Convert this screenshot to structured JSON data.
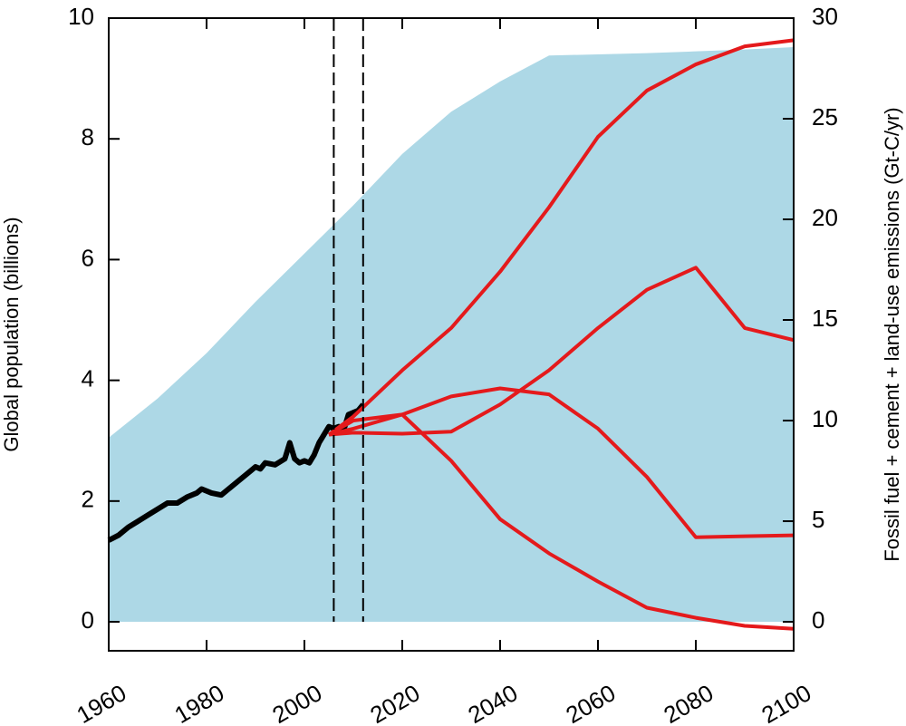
{
  "chart_data": {
    "type": "line",
    "ylabel": "Global population (billions)",
    "y2label": "Fossil fuel + cement + land-use emissions (Gt-C/yr)",
    "xlim": [
      1960,
      2100
    ],
    "xticks": [
      1960,
      1980,
      2000,
      2020,
      2040,
      2060,
      2080,
      2100
    ],
    "ylim": [
      -0.48,
      10
    ],
    "yticks": [
      0,
      2,
      4,
      6,
      8,
      10
    ],
    "y2lim": [
      -1.44,
      30
    ],
    "y2ticks": [
      0,
      5,
      10,
      15,
      20,
      25,
      30
    ],
    "vlines": [
      2006,
      2012
    ],
    "series": [
      {
        "type": "area",
        "color": "#add8e6",
        "x": [
          1960,
          1970,
          1980,
          1990,
          2000,
          2010,
          2020,
          2030,
          2040,
          2050,
          2060,
          2070,
          2080,
          2090,
          2100
        ],
        "values": [
          3.05,
          3.7,
          4.45,
          5.3,
          6.1,
          6.9,
          7.75,
          8.45,
          8.95,
          9.38,
          9.4,
          9.42,
          9.45,
          9.48,
          9.52
        ]
      },
      {
        "color": "#000000",
        "axis": "y2",
        "x": [
          1960,
          1962,
          1964,
          1966,
          1968,
          1970,
          1972,
          1974,
          1976,
          1978,
          1979,
          1981,
          1983,
          1985,
          1987,
          1989,
          1990,
          1991,
          1992,
          1994,
          1996,
          1997,
          1998,
          1999,
          2000,
          2001,
          2002,
          2003,
          2004,
          2005,
          2006,
          2007,
          2008,
          2009,
          2010,
          2011,
          2012
        ],
        "values": [
          4.05,
          4.3,
          4.7,
          5.0,
          5.3,
          5.6,
          5.9,
          5.9,
          6.2,
          6.4,
          6.6,
          6.4,
          6.3,
          6.7,
          7.1,
          7.5,
          7.7,
          7.6,
          7.9,
          7.8,
          8.1,
          8.9,
          8.1,
          7.9,
          8.0,
          7.9,
          8.3,
          8.9,
          9.3,
          9.7,
          9.6,
          9.7,
          9.5,
          10.3,
          10.4,
          10.5,
          10.8
        ]
      },
      {
        "color": "#e41a1c",
        "axis": "y2",
        "x": [
          2005,
          2010,
          2020,
          2030,
          2040,
          2050,
          2060,
          2070,
          2080,
          2090,
          2100
        ],
        "values": [
          9.3,
          10.2,
          12.5,
          14.6,
          17.4,
          20.6,
          24.1,
          26.4,
          27.7,
          28.6,
          28.9
        ]
      },
      {
        "color": "#e41a1c",
        "axis": "y2",
        "x": [
          2005,
          2010,
          2020,
          2030,
          2040,
          2050,
          2060,
          2070,
          2080,
          2090,
          2100
        ],
        "values": [
          9.3,
          9.6,
          10.3,
          11.2,
          11.6,
          11.3,
          9.6,
          7.2,
          4.2,
          4.25,
          4.3
        ]
      },
      {
        "color": "#e41a1c",
        "axis": "y2",
        "x": [
          2005,
          2010,
          2020,
          2030,
          2040,
          2050,
          2060,
          2070,
          2080,
          2090,
          2100
        ],
        "values": [
          9.3,
          9.4,
          9.35,
          9.45,
          10.8,
          12.5,
          14.6,
          16.5,
          17.6,
          14.6,
          14.0
        ]
      },
      {
        "color": "#e41a1c",
        "axis": "y2",
        "x": [
          2005,
          2010,
          2020,
          2030,
          2040,
          2050,
          2060,
          2070,
          2080,
          2090,
          2100
        ],
        "values": [
          9.3,
          10.0,
          10.3,
          8.0,
          5.1,
          3.4,
          2.0,
          0.7,
          0.2,
          -0.2,
          -0.35
        ]
      }
    ]
  }
}
